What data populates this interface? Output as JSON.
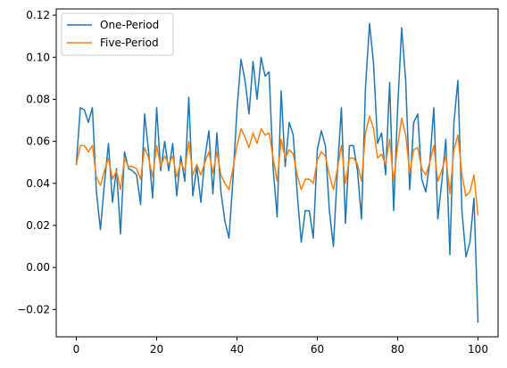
{
  "chart_data": {
    "type": "line",
    "title": "",
    "xlabel": "",
    "ylabel": "",
    "xlim": [
      -5,
      105
    ],
    "ylim": [
      -0.033,
      0.123
    ],
    "x_ticks": [
      0,
      20,
      40,
      60,
      80,
      100
    ],
    "y_ticks": [
      -0.02,
      0.0,
      0.02,
      0.04,
      0.06,
      0.08,
      0.1,
      0.12
    ],
    "x_tick_labels": [
      "0",
      "20",
      "40",
      "60",
      "80",
      "100"
    ],
    "y_tick_labels": [
      "−0.02",
      "0.00",
      "0.02",
      "0.04",
      "0.06",
      "0.08",
      "0.10",
      "0.12"
    ],
    "grid": false,
    "legend_position": "top-left",
    "x": [
      0,
      1,
      2,
      3,
      4,
      5,
      6,
      7,
      8,
      9,
      10,
      11,
      12,
      13,
      14,
      15,
      16,
      17,
      18,
      19,
      20,
      21,
      22,
      23,
      24,
      25,
      26,
      27,
      28,
      29,
      30,
      31,
      32,
      33,
      34,
      35,
      36,
      37,
      38,
      39,
      40,
      41,
      42,
      43,
      44,
      45,
      46,
      47,
      48,
      49,
      50,
      51,
      52,
      53,
      54,
      55,
      56,
      57,
      58,
      59,
      60,
      61,
      62,
      63,
      64,
      65,
      66,
      67,
      68,
      69,
      70,
      71,
      72,
      73,
      74,
      75,
      76,
      77,
      78,
      79,
      80,
      81,
      82,
      83,
      84,
      85,
      86,
      87,
      88,
      89,
      90,
      91,
      92,
      93,
      94,
      95,
      96,
      97,
      98,
      99,
      100
    ],
    "series": [
      {
        "name": "One-Period",
        "color": "#1f77b4",
        "values": [
          0.049,
          0.076,
          0.075,
          0.069,
          0.076,
          0.036,
          0.018,
          0.04,
          0.059,
          0.031,
          0.047,
          0.016,
          0.055,
          0.047,
          0.046,
          0.044,
          0.03,
          0.073,
          0.055,
          0.033,
          0.076,
          0.046,
          0.06,
          0.046,
          0.059,
          0.034,
          0.053,
          0.041,
          0.081,
          0.034,
          0.048,
          0.031,
          0.052,
          0.065,
          0.035,
          0.064,
          0.036,
          0.022,
          0.014,
          0.042,
          0.075,
          0.099,
          0.089,
          0.073,
          0.098,
          0.08,
          0.1,
          0.091,
          0.093,
          0.047,
          0.024,
          0.084,
          0.048,
          0.069,
          0.063,
          0.035,
          0.012,
          0.027,
          0.027,
          0.014,
          0.056,
          0.065,
          0.058,
          0.027,
          0.01,
          0.046,
          0.076,
          0.021,
          0.058,
          0.058,
          0.046,
          0.023,
          0.086,
          0.116,
          0.097,
          0.059,
          0.064,
          0.044,
          0.088,
          0.027,
          0.076,
          0.114,
          0.089,
          0.037,
          0.069,
          0.073,
          0.042,
          0.036,
          0.05,
          0.076,
          0.023,
          0.041,
          0.061,
          0.006,
          0.069,
          0.089,
          0.027,
          0.005,
          0.012,
          0.033,
          -0.026
        ]
      },
      {
        "name": "Five-Period",
        "color": "#ff7f0e",
        "values": [
          0.049,
          0.058,
          0.058,
          0.055,
          0.058,
          0.043,
          0.039,
          0.046,
          0.052,
          0.042,
          0.046,
          0.037,
          0.052,
          0.048,
          0.048,
          0.047,
          0.042,
          0.057,
          0.052,
          0.043,
          0.058,
          0.048,
          0.053,
          0.049,
          0.053,
          0.043,
          0.05,
          0.046,
          0.06,
          0.044,
          0.049,
          0.044,
          0.05,
          0.055,
          0.045,
          0.055,
          0.044,
          0.04,
          0.037,
          0.047,
          0.058,
          0.066,
          0.062,
          0.057,
          0.064,
          0.059,
          0.066,
          0.063,
          0.064,
          0.052,
          0.041,
          0.061,
          0.052,
          0.056,
          0.054,
          0.044,
          0.037,
          0.042,
          0.042,
          0.04,
          0.051,
          0.055,
          0.053,
          0.044,
          0.037,
          0.047,
          0.058,
          0.04,
          0.052,
          0.052,
          0.049,
          0.041,
          0.064,
          0.072,
          0.066,
          0.052,
          0.054,
          0.049,
          0.061,
          0.041,
          0.058,
          0.071,
          0.063,
          0.045,
          0.056,
          0.057,
          0.047,
          0.044,
          0.05,
          0.058,
          0.041,
          0.046,
          0.053,
          0.035,
          0.056,
          0.063,
          0.044,
          0.034,
          0.036,
          0.044,
          0.025
        ]
      }
    ]
  }
}
